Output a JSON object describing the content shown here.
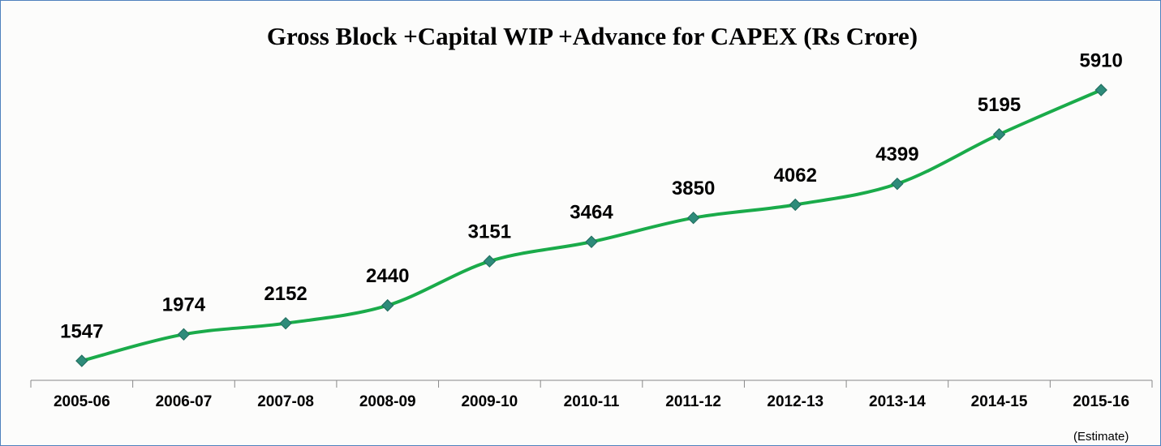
{
  "chart_data": {
    "type": "line",
    "title": "Gross Block +Capital WIP +Advance for CAPEX (Rs Crore)",
    "categories": [
      "2005-06",
      "2006-07",
      "2007-08",
      "2008-09",
      "2009-10",
      "2010-11",
      "2011-12",
      "2012-13",
      "2013-14",
      "2014-15",
      "2015-16"
    ],
    "series": [
      {
        "name": "Gross Block +Capital WIP +Advance for CAPEX",
        "color": "#1aab4a",
        "marker_color": "#2e8b7a",
        "values": [
          1547,
          1974,
          2152,
          2440,
          3151,
          3464,
          3850,
          4062,
          4399,
          5195,
          5910
        ]
      }
    ],
    "annotations": [
      {
        "text": "(Estimate)",
        "category": "2015-16"
      }
    ]
  }
}
